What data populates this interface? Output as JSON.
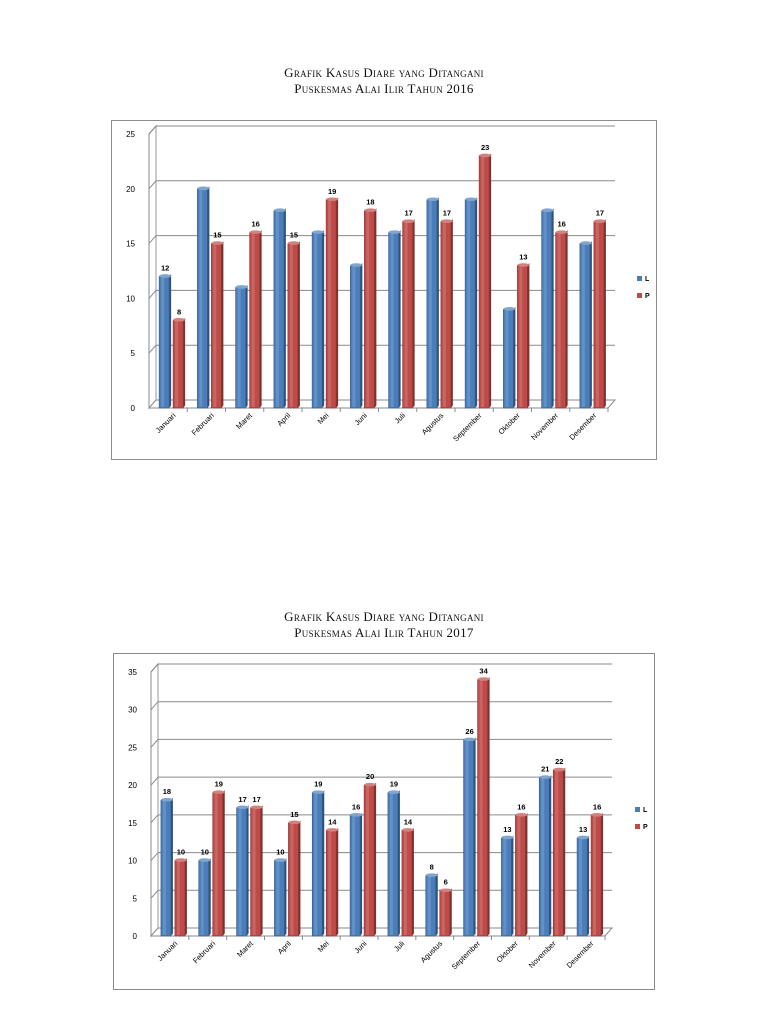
{
  "chart_data": [
    {
      "type": "bar",
      "title": "Grafik Kasus Diare yang Ditangani",
      "subtitle": "Puskesmas Alai Ilir Tahun 2016",
      "categories": [
        "Januari",
        "Februari",
        "Maret",
        "April",
        "Mei",
        "Juni",
        "Juli",
        "Agustus",
        "September",
        "Oktober",
        "November",
        "Desember"
      ],
      "series": [
        {
          "name": "L",
          "values": [
            12,
            20,
            11,
            18,
            16,
            13,
            16,
            19,
            19,
            9,
            18,
            15
          ],
          "labels": [
            "12",
            "",
            "",
            "",
            "",
            "",
            "",
            "",
            "",
            "",
            "",
            ""
          ],
          "color": "#4a7ebb"
        },
        {
          "name": "P",
          "values": [
            8,
            15,
            16,
            15,
            19,
            18,
            17,
            17,
            23,
            13,
            16,
            17
          ],
          "labels": [
            "8",
            "15",
            "16",
            "15",
            "19",
            "18",
            "17",
            "17",
            "23",
            "13",
            "16",
            "17"
          ],
          "color": "#be4b48"
        }
      ],
      "ylim": [
        0,
        25
      ],
      "yticks": [
        "0",
        "5",
        "10",
        "15",
        "20",
        "25"
      ],
      "xlabel": "",
      "ylabel": "",
      "grid": true,
      "legend": "right"
    },
    {
      "type": "bar",
      "title": "Grafik Kasus Diare yang Ditangani",
      "subtitle": "Puskesmas Alai Ilir Tahun 2017",
      "categories": [
        "Januari",
        "Februari",
        "Maret",
        "April",
        "Mei",
        "Juni",
        "Juli",
        "Agustus",
        "September",
        "Oktober",
        "November",
        "Desember"
      ],
      "series": [
        {
          "name": "L",
          "values": [
            18,
            10,
            17,
            10,
            19,
            16,
            19,
            8,
            26,
            13,
            21,
            13
          ],
          "labels": [
            "18",
            "10",
            "17",
            "10",
            "19",
            "16",
            "19",
            "8",
            "26",
            "13",
            "21",
            "13"
          ],
          "color": "#4a7ebb"
        },
        {
          "name": "P",
          "values": [
            10,
            19,
            17,
            15,
            14,
            20,
            14,
            6,
            34,
            16,
            22,
            16
          ],
          "labels": [
            "10",
            "19",
            "17",
            "15",
            "14",
            "20",
            "14",
            "6",
            "34",
            "16",
            "22",
            "16"
          ],
          "color": "#be4b48"
        }
      ],
      "ylim": [
        0,
        35
      ],
      "yticks": [
        "0",
        "5",
        "10",
        "15",
        "20",
        "25",
        "30",
        "35"
      ],
      "xlabel": "",
      "ylabel": "",
      "grid": true,
      "legend": "right"
    }
  ]
}
